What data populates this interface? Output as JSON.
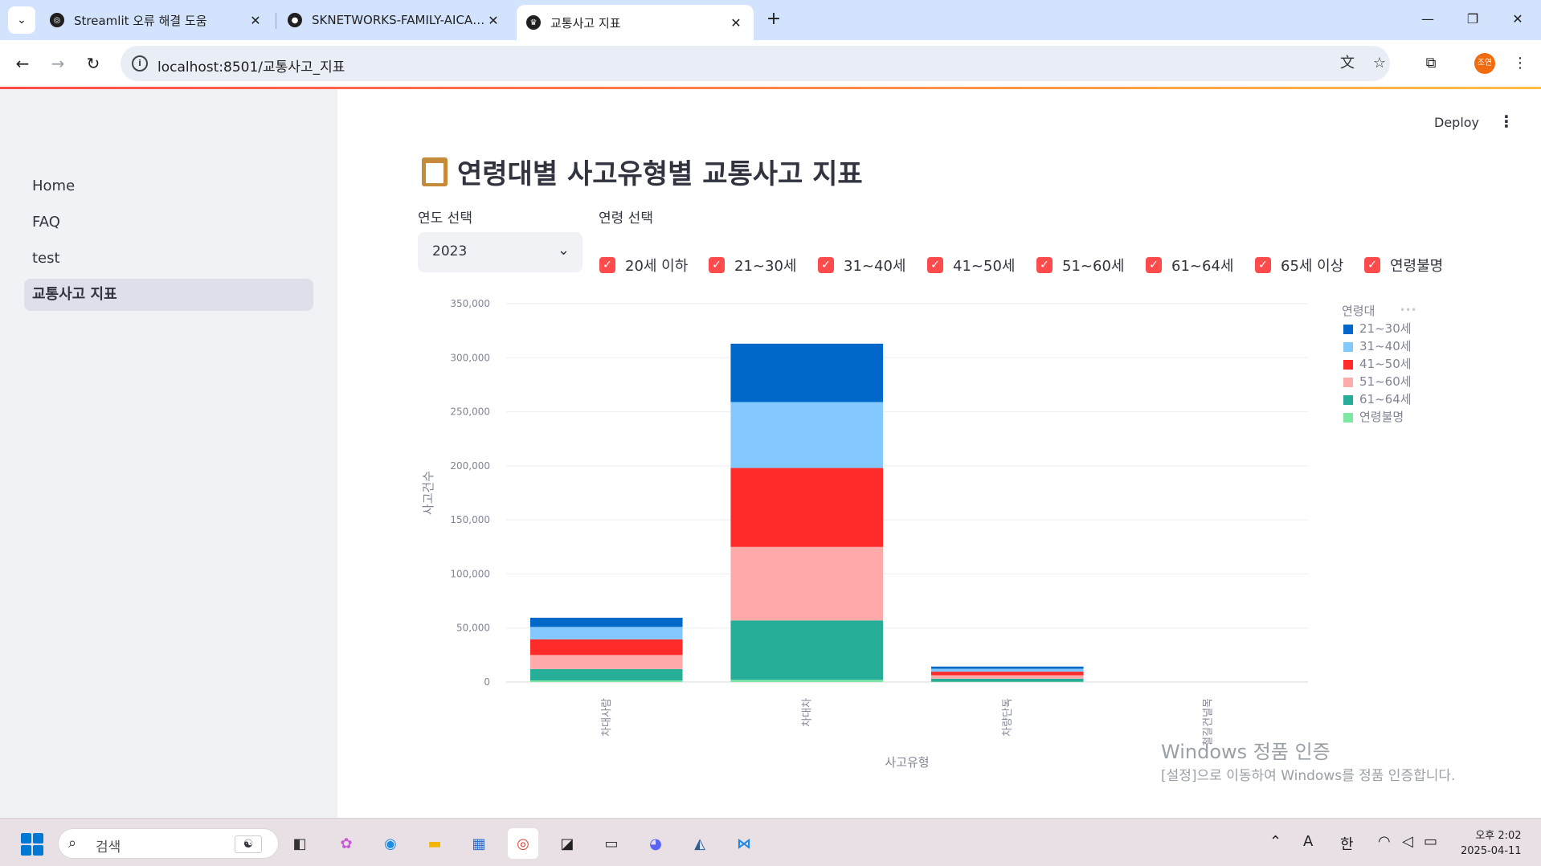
{
  "browser": {
    "tabs": [
      {
        "title": "Streamlit 오류 해결 도움",
        "close": "✕"
      },
      {
        "title": "SKNETWORKS-FAMILY-AICAMP",
        "close": "✕"
      },
      {
        "title": "교통사고 지표",
        "close": "✕"
      }
    ],
    "new_tab": "+",
    "tab_list_icon": "⌄",
    "url": "localhost:8501/교통사고_지표",
    "window_controls": {
      "minimize": "—",
      "restore": "❐",
      "close": "✕"
    },
    "profile_label": "조연"
  },
  "sidebar": {
    "items": [
      {
        "label": "Home"
      },
      {
        "label": "FAQ"
      },
      {
        "label": "test"
      },
      {
        "label": "교통사고 지표"
      }
    ]
  },
  "header": {
    "deploy_label": "Deploy",
    "menu_icon": "⋮"
  },
  "page": {
    "title": "연령대별 사고유형별 교통사고 지표",
    "year_label": "연도 선택",
    "year_value": "2023",
    "age_label": "연령 선택",
    "age_options": [
      "20세 이하",
      "21~30세",
      "31~40세",
      "41~50세",
      "51~60세",
      "61~64세",
      "65세 이상",
      "연령불명"
    ]
  },
  "chart_data": {
    "type": "bar",
    "stacked": true,
    "xlabel": "사고유형",
    "ylabel": "사고건수",
    "ylim": [
      0,
      350000
    ],
    "yticks": [
      "0",
      "50,000",
      "100,000",
      "150,000",
      "200,000",
      "250,000",
      "300,000",
      "350,000"
    ],
    "categories": [
      "차대사람",
      "차대차",
      "차량단독",
      "철길건널목"
    ],
    "legend_title": "연령대",
    "legend_placement": "top-right",
    "series": [
      {
        "name": "연령불명",
        "color": "#7fe7a4",
        "values": [
          1500,
          2000,
          300,
          0
        ]
      },
      {
        "name": "61~64세",
        "color": "#26ae98",
        "values": [
          10500,
          55000,
          2800,
          0
        ]
      },
      {
        "name": "51~60세",
        "color": "#ffaaaa",
        "values": [
          13000,
          68000,
          3200,
          0
        ]
      },
      {
        "name": "41~50세",
        "color": "#ff2b2b",
        "values": [
          14500,
          73000,
          3300,
          0
        ]
      },
      {
        "name": "31~40세",
        "color": "#83c9ff",
        "values": [
          11500,
          61000,
          2700,
          0
        ]
      },
      {
        "name": "21~30세",
        "color": "#0068c9",
        "values": [
          8500,
          54000,
          2000,
          0
        ]
      }
    ],
    "legend_order": [
      "21~30세",
      "31~40세",
      "41~50세",
      "51~60세",
      "61~64세",
      "연령불명"
    ]
  },
  "watermark": {
    "line1": "Windows 정품 인증",
    "line2": "[설정]으로 이동하여 Windows를 정품 인증합니다."
  },
  "taskbar": {
    "search_placeholder": "검색",
    "tray_ime_a": "A",
    "tray_ime_han": "한",
    "time": "오후 2:02",
    "date": "2025-04-11"
  }
}
